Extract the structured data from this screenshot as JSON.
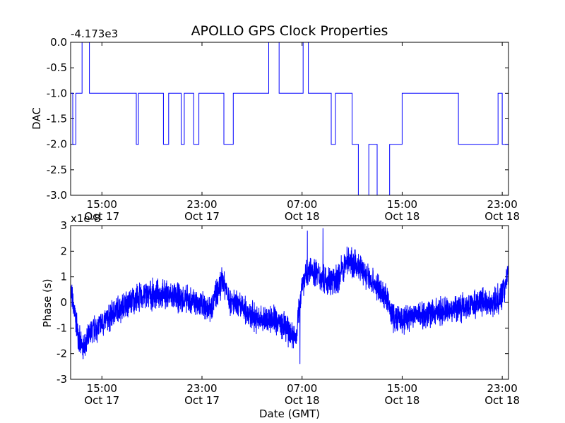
{
  "title": "APOLLO GPS Clock Properties",
  "chart_data": [
    {
      "type": "line",
      "panel": "top",
      "ylabel": "DAC",
      "offset_label": "-4.173e3",
      "ylim": [
        -3.0,
        0.0
      ],
      "yticks": [
        "0.0",
        "-0.5",
        "-1.0",
        "-1.5",
        "-2.0",
        "-2.5",
        "-3.0"
      ],
      "xticks": [
        {
          "time": "15:00",
          "date": "Oct 17"
        },
        {
          "time": "23:00",
          "date": "Oct 17"
        },
        {
          "time": "07:00",
          "date": "Oct 18"
        },
        {
          "time": "15:00",
          "date": "Oct 18"
        },
        {
          "time": "23:00",
          "date": "Oct 18"
        }
      ],
      "x_range": [
        "Oct 17 12:30",
        "Oct 18 23:30"
      ],
      "color": "#0000ff",
      "segments": [
        {
          "from": "Oct 17 12:30",
          "to": "Oct 17 12:40",
          "value": -1.0
        },
        {
          "from": "Oct 17 12:40",
          "to": "Oct 17 12:55",
          "value": -2.0
        },
        {
          "from": "Oct 17 12:55",
          "to": "Oct 17 13:25",
          "value": -1.0
        },
        {
          "from": "Oct 17 13:25",
          "to": "Oct 17 14:00",
          "value": 0.0
        },
        {
          "from": "Oct 17 14:00",
          "to": "Oct 17 17:45",
          "value": -1.0
        },
        {
          "from": "Oct 17 17:45",
          "to": "Oct 17 17:55",
          "value": -2.0
        },
        {
          "from": "Oct 17 17:55",
          "to": "Oct 17 19:55",
          "value": -1.0
        },
        {
          "from": "Oct 17 19:55",
          "to": "Oct 17 20:20",
          "value": -2.0
        },
        {
          "from": "Oct 17 20:20",
          "to": "Oct 17 21:20",
          "value": -1.0
        },
        {
          "from": "Oct 17 21:20",
          "to": "Oct 17 21:35",
          "value": -2.0
        },
        {
          "from": "Oct 17 21:35",
          "to": "Oct 17 22:20",
          "value": -1.0
        },
        {
          "from": "Oct 17 22:20",
          "to": "Oct 17 22:45",
          "value": -2.0
        },
        {
          "from": "Oct 17 22:45",
          "to": "Oct 18 00:45",
          "value": -1.0
        },
        {
          "from": "Oct 18 00:45",
          "to": "Oct 18 01:30",
          "value": -2.0
        },
        {
          "from": "Oct 18 01:30",
          "to": "Oct 18 04:20",
          "value": -1.0
        },
        {
          "from": "Oct 18 04:20",
          "to": "Oct 18 05:10",
          "value": 0.0
        },
        {
          "from": "Oct 18 05:10",
          "to": "Oct 18 07:05",
          "value": -1.0
        },
        {
          "from": "Oct 18 07:05",
          "to": "Oct 18 07:30",
          "value": 0.0
        },
        {
          "from": "Oct 18 07:30",
          "to": "Oct 18 09:20",
          "value": -1.0
        },
        {
          "from": "Oct 18 09:20",
          "to": "Oct 18 09:40",
          "value": -2.0
        },
        {
          "from": "Oct 18 09:40",
          "to": "Oct 18 11:00",
          "value": -1.0
        },
        {
          "from": "Oct 18 11:00",
          "to": "Oct 18 11:30",
          "value": -2.0
        },
        {
          "from": "Oct 18 11:30",
          "to": "Oct 18 12:20",
          "value": -3.0
        },
        {
          "from": "Oct 18 12:20",
          "to": "Oct 18 13:00",
          "value": -2.0
        },
        {
          "from": "Oct 18 13:00",
          "to": "Oct 18 14:00",
          "value": -3.0
        },
        {
          "from": "Oct 18 14:00",
          "to": "Oct 18 15:00",
          "value": -2.0
        },
        {
          "from": "Oct 18 15:00",
          "to": "Oct 18 19:30",
          "value": -1.0
        },
        {
          "from": "Oct 18 19:30",
          "to": "Oct 18 22:40",
          "value": -2.0
        },
        {
          "from": "Oct 18 22:40",
          "to": "Oct 18 23:00",
          "value": -1.0
        },
        {
          "from": "Oct 18 23:00",
          "to": "Oct 18 23:30",
          "value": -2.0
        }
      ]
    },
    {
      "type": "line",
      "panel": "bottom",
      "ylabel": "Phase (s)",
      "xlabel": "Date (GMT)",
      "offset_label": "x1e-8",
      "ylim": [
        -3,
        3
      ],
      "yticks": [
        "3",
        "2",
        "1",
        "0",
        "-1",
        "-2",
        "-3"
      ],
      "xticks": [
        {
          "time": "15:00",
          "date": "Oct 17"
        },
        {
          "time": "23:00",
          "date": "Oct 17"
        },
        {
          "time": "07:00",
          "date": "Oct 18"
        },
        {
          "time": "15:00",
          "date": "Oct 18"
        },
        {
          "time": "23:00",
          "date": "Oct 18"
        }
      ],
      "x_range": [
        "Oct 17 12:30",
        "Oct 18 23:30"
      ],
      "color": "#0000ff",
      "trend": [
        {
          "x": "Oct 17 12:30",
          "y": 0.5
        },
        {
          "x": "Oct 17 12:50",
          "y": -0.5
        },
        {
          "x": "Oct 17 13:20",
          "y": -1.8
        },
        {
          "x": "Oct 17 13:45",
          "y": -1.6
        },
        {
          "x": "Oct 17 14:15",
          "y": -1.1
        },
        {
          "x": "Oct 17 15:10",
          "y": -0.8
        },
        {
          "x": "Oct 17 16:10",
          "y": -0.3
        },
        {
          "x": "Oct 17 17:10",
          "y": 0.0
        },
        {
          "x": "Oct 17 18:30",
          "y": 0.3
        },
        {
          "x": "Oct 17 20:00",
          "y": 0.3
        },
        {
          "x": "Oct 17 21:00",
          "y": 0.2
        },
        {
          "x": "Oct 17 22:20",
          "y": 0.0
        },
        {
          "x": "Oct 17 23:40",
          "y": -0.2
        },
        {
          "x": "Oct 18 00:40",
          "y": 0.9
        },
        {
          "x": "Oct 18 01:20",
          "y": 0.0
        },
        {
          "x": "Oct 18 02:30",
          "y": -0.3
        },
        {
          "x": "Oct 18 03:30",
          "y": -0.7
        },
        {
          "x": "Oct 18 04:40",
          "y": -0.6
        },
        {
          "x": "Oct 18 05:40",
          "y": -1.0
        },
        {
          "x": "Oct 18 06:30",
          "y": -1.4
        },
        {
          "x": "Oct 18 07:00",
          "y": 0.8
        },
        {
          "x": "Oct 18 07:45",
          "y": 1.3
        },
        {
          "x": "Oct 18 08:30",
          "y": 1.0
        },
        {
          "x": "Oct 18 09:40",
          "y": 0.8
        },
        {
          "x": "Oct 18 10:40",
          "y": 1.7
        },
        {
          "x": "Oct 18 11:40",
          "y": 1.3
        },
        {
          "x": "Oct 18 12:40",
          "y": 0.8
        },
        {
          "x": "Oct 18 13:40",
          "y": 0.2
        },
        {
          "x": "Oct 18 14:20",
          "y": -0.6
        },
        {
          "x": "Oct 18 15:00",
          "y": -0.7
        },
        {
          "x": "Oct 18 16:00",
          "y": -0.5
        },
        {
          "x": "Oct 18 17:40",
          "y": -0.4
        },
        {
          "x": "Oct 18 19:30",
          "y": -0.2
        },
        {
          "x": "Oct 18 21:00",
          "y": 0.0
        },
        {
          "x": "Oct 18 22:30",
          "y": 0.0
        },
        {
          "x": "Oct 18 23:10",
          "y": 0.5
        },
        {
          "x": "Oct 18 23:30",
          "y": 1.3
        }
      ],
      "noise_amplitude": 0.45,
      "extremes": [
        {
          "x": "Oct 18 07:25",
          "y": 2.8
        },
        {
          "x": "Oct 18 08:40",
          "y": 2.9
        },
        {
          "x": "Oct 18 06:50",
          "y": -2.4
        },
        {
          "x": "Oct 17 13:30",
          "y": -2.2
        }
      ]
    }
  ]
}
